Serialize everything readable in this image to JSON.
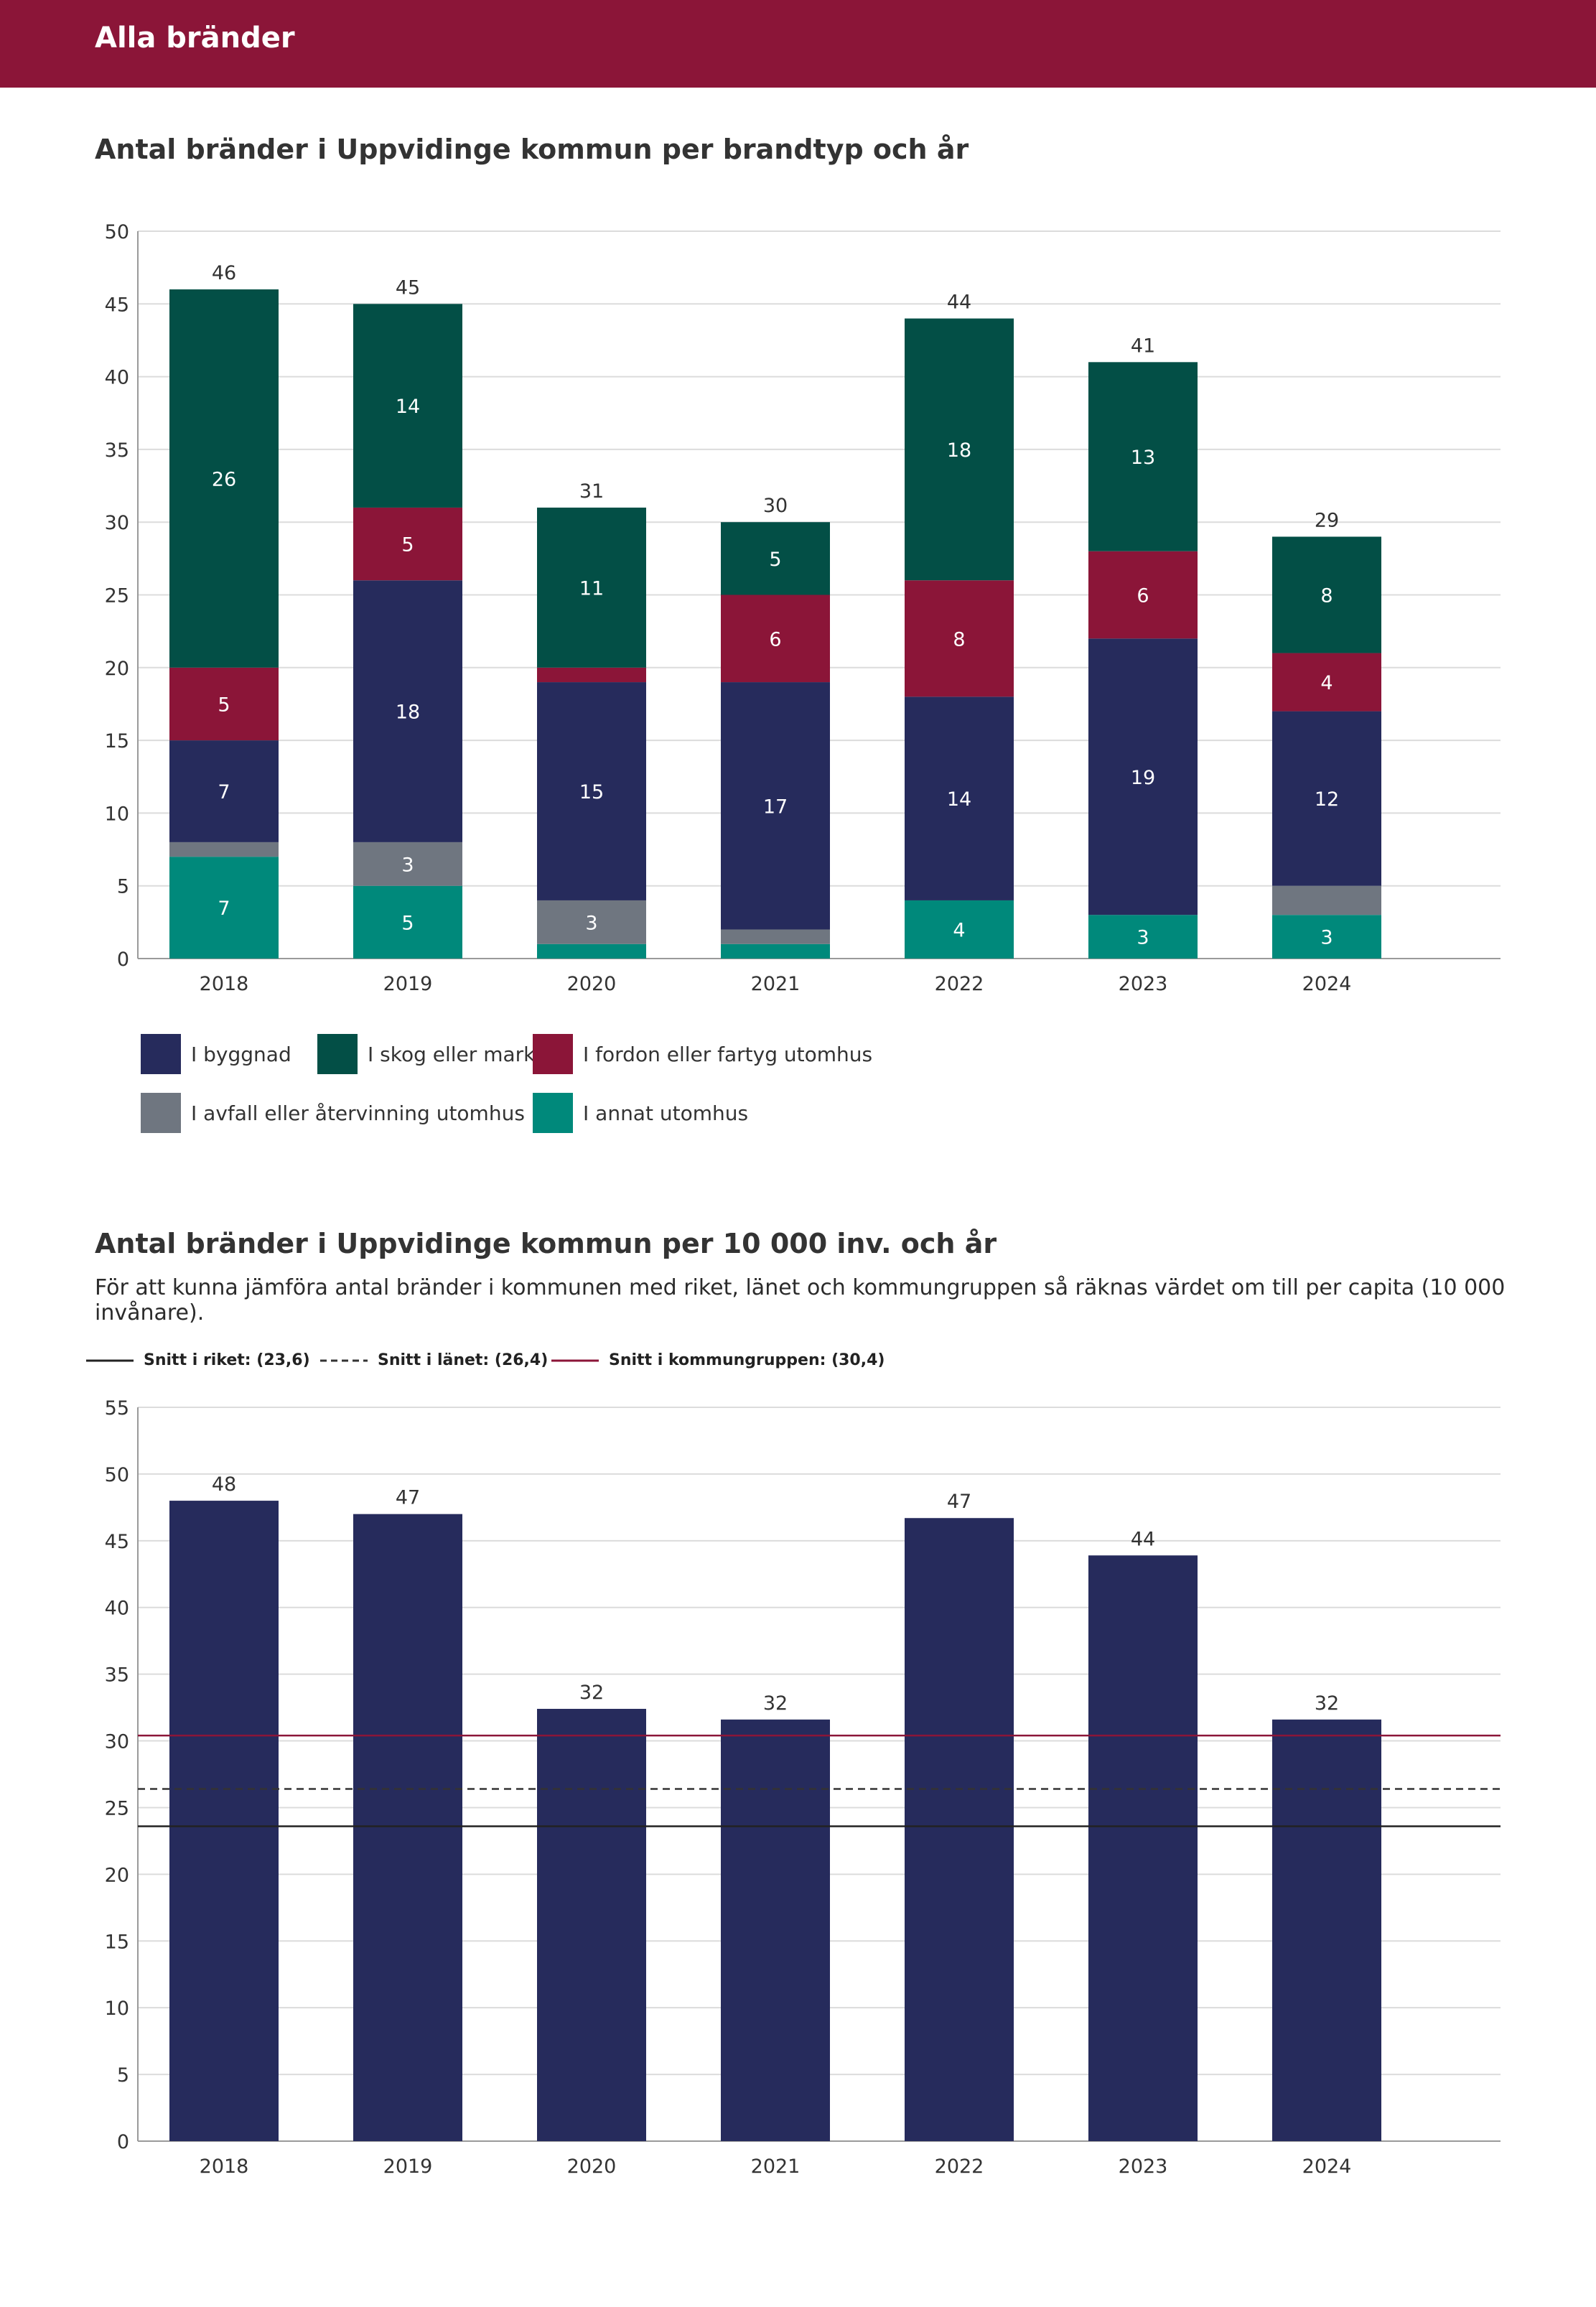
{
  "header": {
    "title": "Alla bränder"
  },
  "chart1": {
    "title": "Antal bränder i Uppvidinge kommun per brandtyp och år",
    "legend": [
      {
        "label": "I byggnad",
        "color": "#262b5c"
      },
      {
        "label": "I skog eller mark",
        "color": "#034f46"
      },
      {
        "label": "I fordon eller fartyg utomhus",
        "color": "#8b1538"
      },
      {
        "label": "I avfall eller återvinning utomhus",
        "color": "#6f7680"
      },
      {
        "label": "I annat utomhus",
        "color": "#00897b"
      }
    ]
  },
  "chart2": {
    "title": "Antal bränder i Uppvidinge kommun per 10 000 inv. och år",
    "subtitle": "För att kunna jämföra antal bränder i kommunen med riket, länet och kommungruppen så räknas värdet om till per capita (10 000 invånare).",
    "ref_lines": [
      {
        "label": "Snitt i riket: (23,6)",
        "value": 23.6,
        "color": "#222222",
        "style": "solid"
      },
      {
        "label": "Snitt i länet: (26,4)",
        "value": 26.4,
        "color": "#333333",
        "style": "dashed"
      },
      {
        "label": "Snitt i kommungruppen: (30,4)",
        "value": 30.4,
        "color": "#8b1538",
        "style": "solid"
      }
    ]
  },
  "chart_data": [
    {
      "type": "bar",
      "stacked": true,
      "title": "Antal bränder i Uppvidinge kommun per brandtyp och år",
      "categories": [
        "2018",
        "2019",
        "2020",
        "2021",
        "2022",
        "2023",
        "2024"
      ],
      "series": [
        {
          "name": "I annat utomhus",
          "color": "#00897b",
          "values": [
            7,
            5,
            1,
            1,
            4,
            3,
            3
          ],
          "labels": [
            "7",
            "5",
            "",
            "",
            "4",
            "3",
            "3"
          ]
        },
        {
          "name": "I avfall eller återvinning utomhus",
          "color": "#6f7680",
          "values": [
            1,
            3,
            3,
            1,
            0,
            0,
            2
          ],
          "labels": [
            "",
            "3",
            "3",
            "",
            "",
            "",
            ""
          ]
        },
        {
          "name": "I byggnad",
          "color": "#262b5c",
          "values": [
            7,
            18,
            15,
            17,
            14,
            19,
            12
          ],
          "labels": [
            "7",
            "18",
            "15",
            "17",
            "14",
            "19",
            "12"
          ]
        },
        {
          "name": "I fordon eller fartyg utomhus",
          "color": "#8b1538",
          "values": [
            5,
            5,
            1,
            6,
            8,
            6,
            4
          ],
          "labels": [
            "5",
            "5",
            "",
            "6",
            "8",
            "6",
            "4"
          ]
        },
        {
          "name": "I skog eller mark",
          "color": "#034f46",
          "values": [
            26,
            14,
            11,
            5,
            18,
            13,
            8
          ],
          "labels": [
            "26",
            "14",
            "11",
            "5",
            "18",
            "13",
            "8"
          ]
        }
      ],
      "totals": [
        46,
        45,
        31,
        30,
        44,
        41,
        29
      ],
      "total_labels": [
        "46",
        "45",
        "31",
        "30",
        "44",
        "41",
        "29"
      ],
      "ylim": [
        0,
        50
      ],
      "yticks": [
        0,
        5,
        10,
        15,
        20,
        25,
        30,
        35,
        40,
        45,
        50
      ],
      "ytick_labels": [
        "0",
        "5",
        "10",
        "15",
        "20",
        "25",
        "30",
        "35",
        "40",
        "45",
        "50"
      ],
      "xlabel": "",
      "ylabel": ""
    },
    {
      "type": "bar",
      "title": "Antal bränder i Uppvidinge kommun per 10 000 inv. och år",
      "categories": [
        "2018",
        "2019",
        "2020",
        "2021",
        "2022",
        "2023",
        "2024"
      ],
      "values": [
        48,
        47,
        32.4,
        31.6,
        46.7,
        43.9,
        31.6
      ],
      "value_labels": [
        "48",
        "47",
        "32",
        "32",
        "47",
        "44",
        "32"
      ],
      "bar_color": "#262b5c",
      "ylim": [
        0,
        55
      ],
      "yticks": [
        0,
        5,
        10,
        15,
        20,
        25,
        30,
        35,
        40,
        45,
        50,
        55
      ],
      "ytick_labels": [
        "0",
        "5",
        "10",
        "15",
        "20",
        "25",
        "30",
        "35",
        "40",
        "45",
        "50",
        "55"
      ],
      "ref_values": [
        23.6,
        26.4,
        30.4
      ],
      "xlabel": "",
      "ylabel": ""
    }
  ]
}
